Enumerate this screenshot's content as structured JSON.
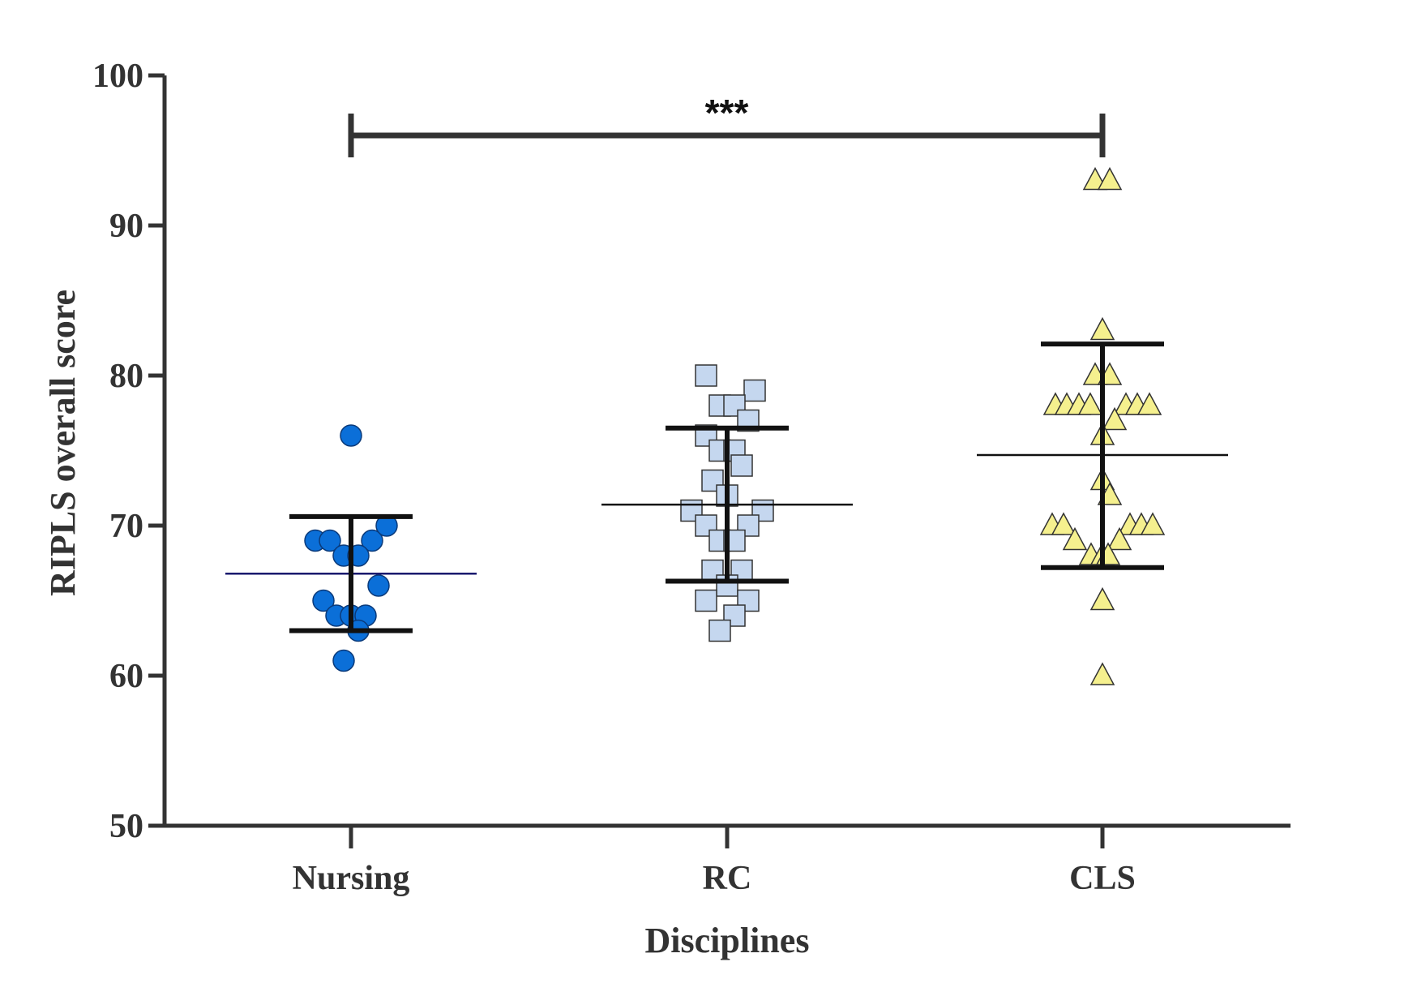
{
  "chart_data": {
    "type": "scatter",
    "xlabel": "Disciplines",
    "ylabel": "RIPLS overall score",
    "ylim": [
      50,
      100
    ],
    "yticks": [
      50,
      60,
      70,
      80,
      90,
      100
    ],
    "categories": [
      "Nursing",
      "RC",
      "CLS"
    ],
    "grid": false,
    "legend": "none",
    "series": [
      {
        "category": "Nursing",
        "marker": "circle",
        "fill": "#0b6fd8",
        "stroke": "#0a3a7a",
        "mean_color": "#1a1a6e",
        "mean": 66.8,
        "sd_lower": 63.0,
        "sd_upper": 70.6,
        "points": [
          {
            "dx": 0.0,
            "y": 76
          },
          {
            "dx": -0.22,
            "y": 69
          },
          {
            "dx": -0.13,
            "y": 69
          },
          {
            "dx": 0.13,
            "y": 69
          },
          {
            "dx": 0.22,
            "y": 70
          },
          {
            "dx": -0.045,
            "y": 68
          },
          {
            "dx": 0.045,
            "y": 68
          },
          {
            "dx": -0.17,
            "y": 65
          },
          {
            "dx": 0.17,
            "y": 66
          },
          {
            "dx": -0.09,
            "y": 64
          },
          {
            "dx": 0.0,
            "y": 64
          },
          {
            "dx": 0.09,
            "y": 64
          },
          {
            "dx": 0.045,
            "y": 63
          },
          {
            "dx": -0.045,
            "y": 61
          }
        ]
      },
      {
        "category": "RC",
        "marker": "square",
        "fill": "#c5d7ef",
        "stroke": "#333333",
        "mean_color": "#111111",
        "mean": 71.4,
        "sd_lower": 66.3,
        "sd_upper": 76.5,
        "points": [
          {
            "dx": -0.13,
            "y": 80
          },
          {
            "dx": 0.17,
            "y": 79
          },
          {
            "dx": -0.045,
            "y": 78
          },
          {
            "dx": 0.045,
            "y": 78
          },
          {
            "dx": 0.13,
            "y": 77
          },
          {
            "dx": -0.13,
            "y": 76
          },
          {
            "dx": -0.045,
            "y": 75
          },
          {
            "dx": 0.045,
            "y": 75
          },
          {
            "dx": 0.09,
            "y": 74
          },
          {
            "dx": -0.09,
            "y": 73
          },
          {
            "dx": 0.0,
            "y": 72
          },
          {
            "dx": -0.22,
            "y": 71
          },
          {
            "dx": 0.22,
            "y": 71
          },
          {
            "dx": -0.13,
            "y": 70
          },
          {
            "dx": 0.13,
            "y": 70
          },
          {
            "dx": -0.045,
            "y": 69
          },
          {
            "dx": 0.045,
            "y": 69
          },
          {
            "dx": -0.09,
            "y": 67
          },
          {
            "dx": 0.09,
            "y": 67
          },
          {
            "dx": 0.0,
            "y": 66
          },
          {
            "dx": -0.13,
            "y": 65
          },
          {
            "dx": 0.13,
            "y": 65
          },
          {
            "dx": 0.045,
            "y": 64
          },
          {
            "dx": -0.045,
            "y": 63
          }
        ]
      },
      {
        "category": "CLS",
        "marker": "triangle",
        "fill": "#f5f08e",
        "stroke": "#333333",
        "mean_color": "#111111",
        "mean": 74.7,
        "sd_lower": 67.2,
        "sd_upper": 82.1,
        "points": [
          {
            "dx": -0.045,
            "y": 93
          },
          {
            "dx": 0.045,
            "y": 93
          },
          {
            "dx": 0.0,
            "y": 83
          },
          {
            "dx": -0.045,
            "y": 80
          },
          {
            "dx": 0.045,
            "y": 80
          },
          {
            "dx": -0.29,
            "y": 78
          },
          {
            "dx": -0.22,
            "y": 78
          },
          {
            "dx": -0.145,
            "y": 78
          },
          {
            "dx": -0.075,
            "y": 78
          },
          {
            "dx": 0.145,
            "y": 78
          },
          {
            "dx": 0.215,
            "y": 78
          },
          {
            "dx": 0.29,
            "y": 78
          },
          {
            "dx": 0.075,
            "y": 77
          },
          {
            "dx": 0.0,
            "y": 76
          },
          {
            "dx": 0.0,
            "y": 73
          },
          {
            "dx": 0.045,
            "y": 72
          },
          {
            "dx": -0.31,
            "y": 70
          },
          {
            "dx": -0.24,
            "y": 70
          },
          {
            "dx": 0.17,
            "y": 70
          },
          {
            "dx": 0.24,
            "y": 70
          },
          {
            "dx": 0.31,
            "y": 70
          },
          {
            "dx": -0.17,
            "y": 69
          },
          {
            "dx": 0.105,
            "y": 69
          },
          {
            "dx": -0.07,
            "y": 68
          },
          {
            "dx": 0.0,
            "y": 68
          },
          {
            "dx": 0.035,
            "y": 68
          },
          {
            "dx": 0.0,
            "y": 65
          },
          {
            "dx": 0.0,
            "y": 60
          }
        ]
      }
    ],
    "annotations": [
      {
        "type": "significance_bracket",
        "from": "Nursing",
        "to": "CLS",
        "y": 96,
        "text": "***"
      }
    ]
  }
}
